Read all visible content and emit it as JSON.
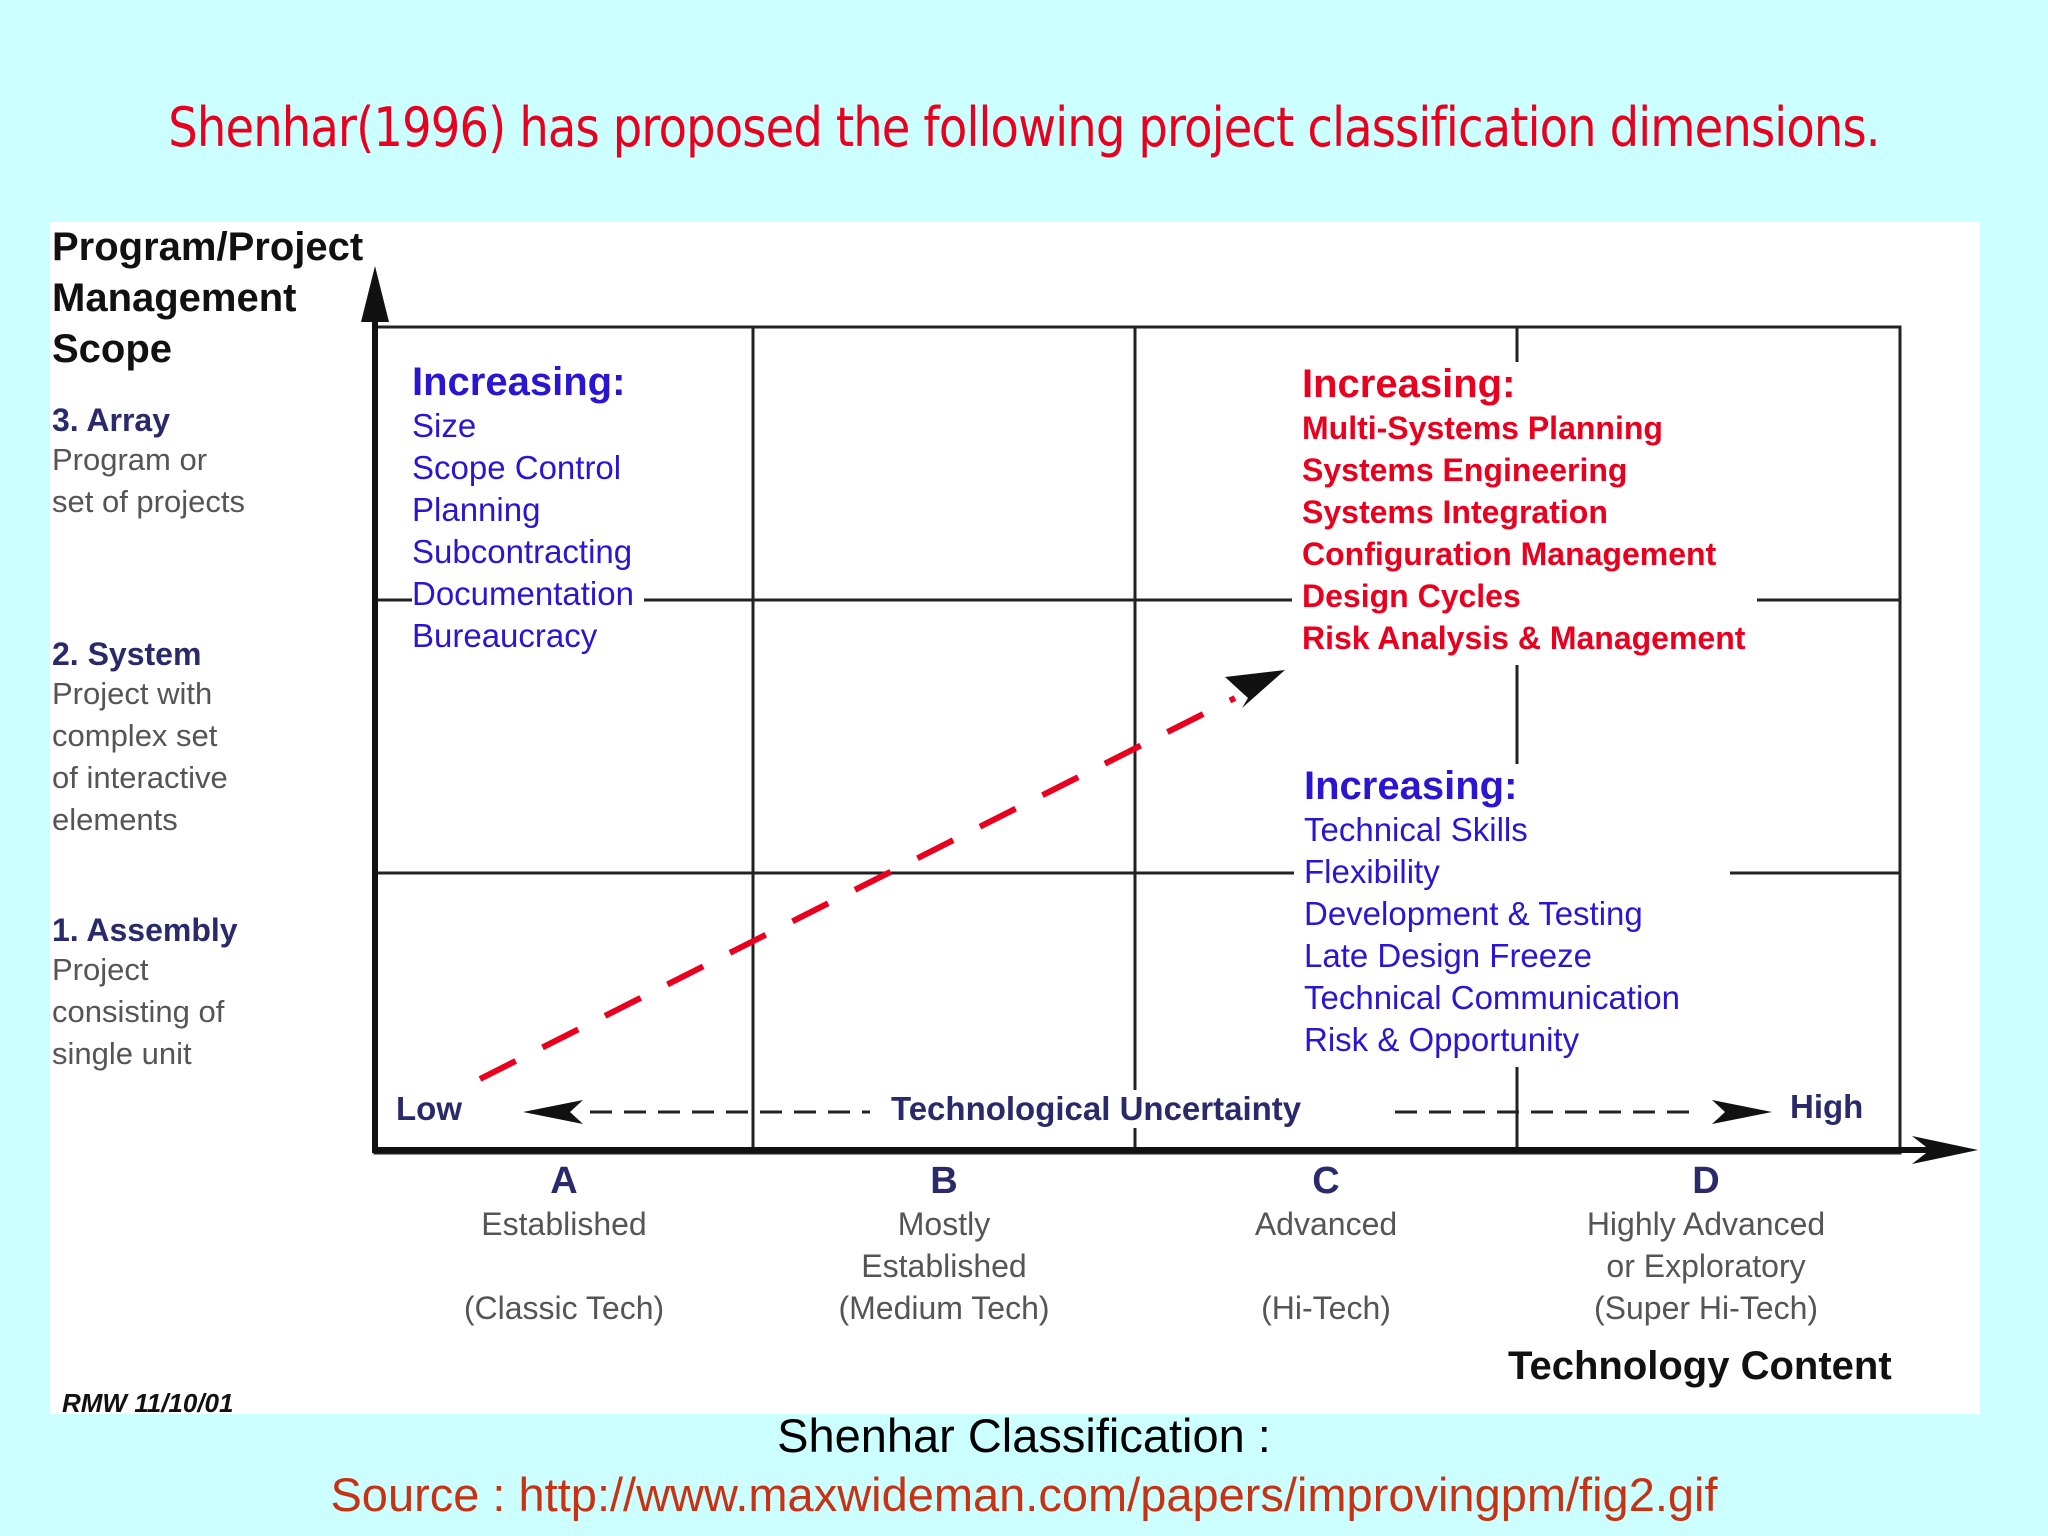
{
  "slide": {
    "title": "Shenhar(1996) has proposed the following project classification dimensions.",
    "caption": "Shenhar Classification :",
    "source": "Source : http://www.maxwideman.com/papers/improvingpm/fig2.gif"
  },
  "figure": {
    "y_axis_title": [
      "Program/Project",
      "Management",
      "Scope"
    ],
    "levels": [
      {
        "head": "3. Array",
        "desc": [
          "Program or",
          "set of projects"
        ]
      },
      {
        "head": "2. System",
        "desc": [
          "Project with",
          "complex set",
          "of interactive",
          "elements"
        ]
      },
      {
        "head": "1. Assembly",
        "desc": [
          "Project",
          "consisting of",
          "single unit"
        ]
      }
    ],
    "blue_box_1": {
      "head": "Increasing:",
      "items": [
        "Size",
        "Scope Control",
        "Planning",
        "Subcontracting",
        "Documentation",
        "Bureaucracy"
      ]
    },
    "red_box": {
      "head": "Increasing:",
      "items": [
        "Multi-Systems Planning",
        "Systems Engineering",
        "Systems Integration",
        "Configuration Management",
        "Design Cycles",
        "Risk Analysis & Management"
      ]
    },
    "blue_box_2": {
      "head": "Increasing:",
      "items": [
        "Technical Skills",
        "Flexibility",
        "Development & Testing",
        "Late Design Freeze",
        "Technical Communication",
        "Risk & Opportunity"
      ]
    },
    "uncertainty": {
      "low": "Low",
      "label": "Technological Uncertainty",
      "high": "High"
    },
    "columns": [
      {
        "letter": "A",
        "desc": [
          "Established",
          "",
          "(Classic Tech)"
        ]
      },
      {
        "letter": "B",
        "desc": [
          "Mostly",
          "Established",
          "(Medium Tech)"
        ]
      },
      {
        "letter": "C",
        "desc": [
          "Advanced",
          "",
          "(Hi-Tech)"
        ]
      },
      {
        "letter": "D",
        "desc": [
          "Highly Advanced",
          "or Exploratory",
          "(Super Hi-Tech)"
        ]
      }
    ],
    "x_axis_title": "Technology Content",
    "footnote": "RMW 11/10/01"
  },
  "colors": {
    "background": "#ccffff",
    "title": "#e8001e",
    "blue_text": "#2a16d0",
    "red_text": "#e8001e",
    "source": "#c83214"
  }
}
